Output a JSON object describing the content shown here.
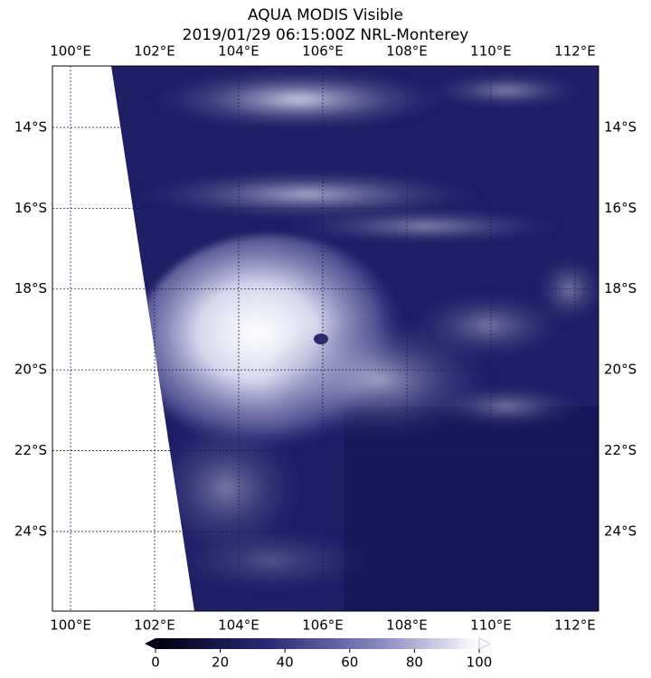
{
  "map": {
    "title": [
      "AQUA MODIS Visible",
      "2019/01/29 06:15:00Z NRL-Monterey"
    ],
    "lon_range": [
      99.57,
      112.56
    ],
    "lat_range": [
      -12.48,
      -25.97
    ],
    "lon_ticks": [
      {
        "value": 100,
        "label": "100°E"
      },
      {
        "value": 102,
        "label": "102°E"
      },
      {
        "value": 104,
        "label": "104°E"
      },
      {
        "value": 106,
        "label": "106°E"
      },
      {
        "value": 108,
        "label": "108°E"
      },
      {
        "value": 110,
        "label": "110°E"
      },
      {
        "value": 112,
        "label": "112°E"
      }
    ],
    "lat_ticks": [
      {
        "value": -14,
        "label": "14°S"
      },
      {
        "value": -16,
        "label": "16°S"
      },
      {
        "value": -18,
        "label": "18°S"
      },
      {
        "value": -20,
        "label": "20°S"
      },
      {
        "value": -22,
        "label": "22°S"
      },
      {
        "value": -24,
        "label": "24°S"
      }
    ],
    "colorbar": {
      "range": [
        0,
        100
      ],
      "ticks": [
        0,
        20,
        40,
        60,
        80,
        100
      ]
    }
  }
}
